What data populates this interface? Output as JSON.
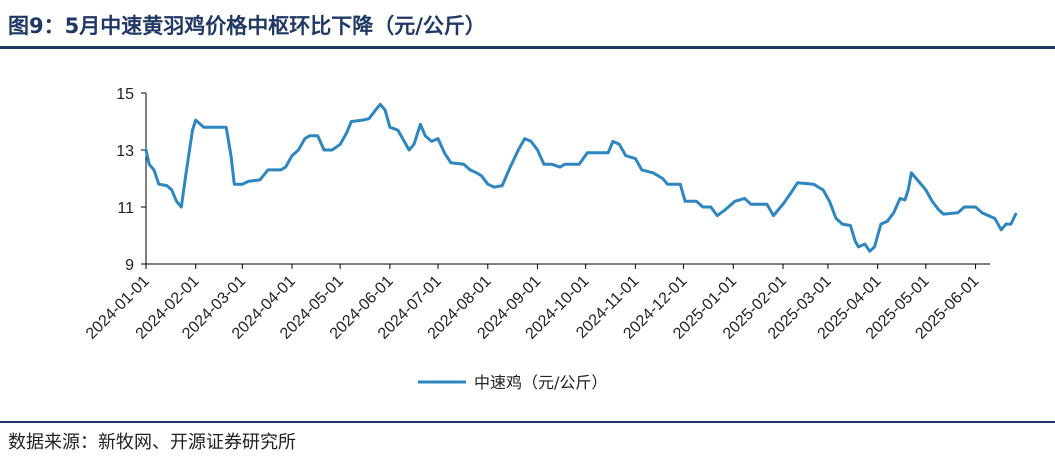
{
  "header": {
    "title": "图9：5月中速黄羽鸡价格中枢环比下降（元/公斤）"
  },
  "footer": {
    "source": "数据来源：新牧网、开源证券研究所"
  },
  "colors": {
    "series": "#2e86c1",
    "rule": "#1f3864"
  },
  "chart_data": {
    "type": "line",
    "title": "图9：5月中速黄羽鸡价格中枢环比下降（元/公斤）",
    "xlabel": "",
    "ylabel": "",
    "ylim": [
      9,
      15
    ],
    "yticks": [
      "9",
      "11",
      "13",
      "15"
    ],
    "xlim": [
      "2024-01-01",
      "2025-06-10"
    ],
    "xticks": [
      "2024-01-01",
      "2024-02-01",
      "2024-03-01",
      "2024-04-01",
      "2024-05-01",
      "2024-06-01",
      "2024-07-01",
      "2024-08-01",
      "2024-09-01",
      "2024-10-01",
      "2024-11-01",
      "2024-12-01",
      "2025-01-01",
      "2025-02-01",
      "2025-03-01",
      "2025-04-01",
      "2025-05-01",
      "2025-06-01"
    ],
    "grid": false,
    "legend": "bottom-center",
    "series": [
      {
        "name": "中速鸡（元/公斤）",
        "points": [
          [
            "2024-01-01",
            13.0
          ],
          [
            "2024-01-03",
            12.5
          ],
          [
            "2024-01-06",
            12.3
          ],
          [
            "2024-01-09",
            11.8
          ],
          [
            "2024-01-14",
            11.75
          ],
          [
            "2024-01-17",
            11.6
          ],
          [
            "2024-01-20",
            11.2
          ],
          [
            "2024-01-23",
            11.0
          ],
          [
            "2024-01-26",
            12.2
          ],
          [
            "2024-01-30",
            13.7
          ],
          [
            "2024-02-01",
            14.05
          ],
          [
            "2024-02-06",
            13.8
          ],
          [
            "2024-02-15",
            13.8
          ],
          [
            "2024-02-20",
            13.8
          ],
          [
            "2024-02-23",
            12.8
          ],
          [
            "2024-02-25",
            11.8
          ],
          [
            "2024-03-01",
            11.8
          ],
          [
            "2024-03-05",
            11.9
          ],
          [
            "2024-03-12",
            11.95
          ],
          [
            "2024-03-17",
            12.3
          ],
          [
            "2024-03-25",
            12.3
          ],
          [
            "2024-03-28",
            12.4
          ],
          [
            "2024-04-01",
            12.8
          ],
          [
            "2024-04-05",
            13.0
          ],
          [
            "2024-04-09",
            13.4
          ],
          [
            "2024-04-12",
            13.5
          ],
          [
            "2024-04-17",
            13.5
          ],
          [
            "2024-04-21",
            13.0
          ],
          [
            "2024-04-26",
            13.0
          ],
          [
            "2024-05-01",
            13.2
          ],
          [
            "2024-05-05",
            13.6
          ],
          [
            "2024-05-08",
            14.0
          ],
          [
            "2024-05-15",
            14.05
          ],
          [
            "2024-05-19",
            14.1
          ],
          [
            "2024-05-23",
            14.4
          ],
          [
            "2024-05-26",
            14.6
          ],
          [
            "2024-05-29",
            14.4
          ],
          [
            "2024-06-01",
            13.8
          ],
          [
            "2024-06-06",
            13.7
          ],
          [
            "2024-06-09",
            13.4
          ],
          [
            "2024-06-13",
            13.0
          ],
          [
            "2024-06-16",
            13.2
          ],
          [
            "2024-06-20",
            13.9
          ],
          [
            "2024-06-23",
            13.5
          ],
          [
            "2024-06-27",
            13.3
          ],
          [
            "2024-07-01",
            13.4
          ],
          [
            "2024-07-05",
            12.9
          ],
          [
            "2024-07-09",
            12.55
          ],
          [
            "2024-07-17",
            12.5
          ],
          [
            "2024-07-21",
            12.3
          ],
          [
            "2024-07-25",
            12.2
          ],
          [
            "2024-07-28",
            12.1
          ],
          [
            "2024-08-01",
            11.8
          ],
          [
            "2024-08-05",
            11.7
          ],
          [
            "2024-08-10",
            11.75
          ],
          [
            "2024-08-15",
            12.4
          ],
          [
            "2024-08-20",
            13.0
          ],
          [
            "2024-08-24",
            13.4
          ],
          [
            "2024-08-28",
            13.3
          ],
          [
            "2024-09-01",
            13.0
          ],
          [
            "2024-09-05",
            12.5
          ],
          [
            "2024-09-10",
            12.5
          ],
          [
            "2024-09-15",
            12.4
          ],
          [
            "2024-09-18",
            12.5
          ],
          [
            "2024-09-27",
            12.5
          ],
          [
            "2024-10-02",
            12.9
          ],
          [
            "2024-10-10",
            12.9
          ],
          [
            "2024-10-15",
            12.9
          ],
          [
            "2024-10-18",
            13.3
          ],
          [
            "2024-10-22",
            13.2
          ],
          [
            "2024-10-26",
            12.8
          ],
          [
            "2024-11-01",
            12.7
          ],
          [
            "2024-11-05",
            12.3
          ],
          [
            "2024-11-12",
            12.2
          ],
          [
            "2024-11-18",
            12.0
          ],
          [
            "2024-11-21",
            11.8
          ],
          [
            "2024-11-29",
            11.8
          ],
          [
            "2024-12-02",
            11.2
          ],
          [
            "2024-12-09",
            11.2
          ],
          [
            "2024-12-13",
            11.0
          ],
          [
            "2024-12-18",
            11.0
          ],
          [
            "2024-12-22",
            10.7
          ],
          [
            "2024-12-27",
            10.9
          ],
          [
            "2025-01-02",
            11.2
          ],
          [
            "2025-01-08",
            11.3
          ],
          [
            "2025-01-12",
            11.1
          ],
          [
            "2025-01-22",
            11.1
          ],
          [
            "2025-01-26",
            10.7
          ],
          [
            "2025-02-01",
            11.1
          ],
          [
            "2025-02-06",
            11.5
          ],
          [
            "2025-02-10",
            11.85
          ],
          [
            "2025-02-20",
            11.8
          ],
          [
            "2025-02-26",
            11.6
          ],
          [
            "2025-03-02",
            11.2
          ],
          [
            "2025-03-06",
            10.6
          ],
          [
            "2025-03-10",
            10.4
          ],
          [
            "2025-03-15",
            10.35
          ],
          [
            "2025-03-18",
            9.8
          ],
          [
            "2025-03-20",
            9.6
          ],
          [
            "2025-03-24",
            9.7
          ],
          [
            "2025-03-27",
            9.45
          ],
          [
            "2025-03-30",
            9.6
          ],
          [
            "2025-04-03",
            10.4
          ],
          [
            "2025-04-07",
            10.5
          ],
          [
            "2025-04-11",
            10.8
          ],
          [
            "2025-04-15",
            11.3
          ],
          [
            "2025-04-18",
            11.25
          ],
          [
            "2025-04-20",
            11.6
          ],
          [
            "2025-04-22",
            12.2
          ],
          [
            "2025-04-25",
            12.0
          ],
          [
            "2025-04-28",
            11.8
          ],
          [
            "2025-05-01",
            11.6
          ],
          [
            "2025-05-05",
            11.2
          ],
          [
            "2025-05-09",
            10.9
          ],
          [
            "2025-05-12",
            10.75
          ],
          [
            "2025-05-21",
            10.8
          ],
          [
            "2025-05-25",
            11.0
          ],
          [
            "2025-06-01",
            11.0
          ],
          [
            "2025-06-05",
            10.8
          ],
          [
            "2025-06-09",
            10.7
          ],
          [
            "2025-06-13",
            10.6
          ],
          [
            "2025-06-17",
            10.2
          ],
          [
            "2025-06-20",
            10.4
          ],
          [
            "2025-06-23",
            10.4
          ],
          [
            "2025-06-26",
            10.75
          ]
        ]
      }
    ]
  }
}
